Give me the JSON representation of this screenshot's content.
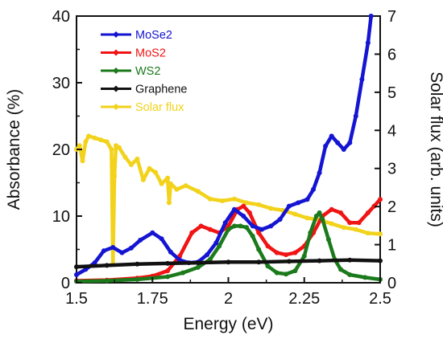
{
  "chart_data": {
    "type": "line",
    "title": "",
    "xlabel": "Energy (eV)",
    "ylabel": "Absorbance (%)",
    "y2label": "Solar flux (arb. units)",
    "xlim": [
      1.5,
      2.5
    ],
    "ylim": [
      0,
      40
    ],
    "y2lim": [
      0,
      7
    ],
    "x_ticks": [
      1.5,
      1.75,
      2,
      2.25,
      2.5
    ],
    "x_tick_labels": [
      "1.5",
      "1.75",
      "2",
      "2.25",
      "2.5"
    ],
    "y_ticks": [
      0,
      10,
      20,
      30,
      40
    ],
    "y_tick_labels": [
      "0",
      "10",
      "20",
      "30",
      "40"
    ],
    "y2_ticks": [
      0,
      1,
      2,
      3,
      4,
      5,
      6,
      7
    ],
    "y2_tick_labels": [
      "0",
      "1",
      "2",
      "3",
      "4",
      "5",
      "6",
      "7"
    ],
    "grid": false,
    "legend_position": "top-left",
    "series": [
      {
        "name": "MoSe2",
        "color": "#1414d2",
        "axis": "left",
        "x": [
          1.5,
          1.53,
          1.56,
          1.59,
          1.62,
          1.65,
          1.68,
          1.71,
          1.75,
          1.78,
          1.81,
          1.84,
          1.87,
          1.9,
          1.93,
          1.96,
          1.99,
          2.02,
          2.05,
          2.08,
          2.11,
          2.14,
          2.17,
          2.2,
          2.23,
          2.26,
          2.28,
          2.3,
          2.32,
          2.34,
          2.36,
          2.38,
          2.4,
          2.42,
          2.44,
          2.46,
          2.47
        ],
        "y": [
          1.2,
          2.0,
          3.0,
          4.8,
          5.3,
          4.5,
          5.2,
          6.4,
          7.5,
          6.6,
          4.6,
          3.4,
          3.0,
          3.1,
          4.2,
          6.0,
          9.0,
          11.0,
          10.0,
          8.5,
          8.0,
          8.5,
          9.5,
          11.5,
          12.0,
          12.5,
          14.0,
          16.5,
          20.5,
          22.0,
          21.0,
          20.0,
          21.0,
          25.0,
          30.5,
          36.0,
          40.0
        ]
      },
      {
        "name": "MoS2",
        "color": "#f01414",
        "axis": "left",
        "x": [
          1.5,
          1.6,
          1.7,
          1.75,
          1.8,
          1.84,
          1.88,
          1.91,
          1.94,
          1.97,
          2.0,
          2.03,
          2.05,
          2.07,
          2.1,
          2.13,
          2.16,
          2.19,
          2.22,
          2.25,
          2.28,
          2.31,
          2.34,
          2.37,
          2.4,
          2.43,
          2.46,
          2.48,
          2.5
        ],
        "y": [
          0.3,
          0.4,
          0.7,
          1.0,
          1.8,
          4.0,
          7.5,
          8.5,
          8.0,
          7.5,
          8.5,
          11.0,
          11.5,
          10.5,
          7.5,
          5.5,
          4.5,
          4.2,
          4.5,
          5.5,
          7.5,
          10.0,
          11.0,
          10.5,
          9.0,
          9.0,
          10.5,
          11.5,
          12.5
        ]
      },
      {
        "name": "WS2",
        "color": "#1b7a1b",
        "axis": "left",
        "x": [
          1.5,
          1.6,
          1.7,
          1.8,
          1.85,
          1.9,
          1.94,
          1.97,
          2.0,
          2.02,
          2.04,
          2.06,
          2.08,
          2.1,
          2.13,
          2.16,
          2.19,
          2.22,
          2.25,
          2.27,
          2.29,
          2.3,
          2.31,
          2.33,
          2.35,
          2.37,
          2.4,
          2.45,
          2.5
        ],
        "y": [
          0.2,
          0.3,
          0.5,
          0.9,
          1.5,
          2.3,
          3.5,
          5.5,
          8.0,
          8.5,
          8.5,
          8.3,
          7.0,
          5.0,
          2.5,
          1.5,
          1.3,
          1.8,
          4.0,
          7.5,
          10.0,
          10.5,
          9.5,
          6.5,
          3.5,
          2.0,
          1.2,
          0.8,
          0.5
        ]
      },
      {
        "name": "Graphene",
        "color": "#111111",
        "axis": "left",
        "x": [
          1.5,
          1.6,
          1.7,
          1.8,
          1.9,
          2.0,
          2.1,
          2.2,
          2.3,
          2.4,
          2.5
        ],
        "y": [
          2.4,
          2.6,
          2.8,
          2.9,
          3.0,
          3.1,
          3.1,
          3.2,
          3.3,
          3.4,
          3.3
        ]
      },
      {
        "name": "Solar flux",
        "color": "#f2d21a",
        "axis": "right",
        "x": [
          1.5,
          1.51,
          1.52,
          1.53,
          1.54,
          1.56,
          1.58,
          1.6,
          1.615,
          1.62,
          1.625,
          1.63,
          1.64,
          1.66,
          1.68,
          1.7,
          1.72,
          1.74,
          1.76,
          1.78,
          1.8,
          1.805,
          1.81,
          1.83,
          1.86,
          1.9,
          1.94,
          1.98,
          2.02,
          2.06,
          2.1,
          2.14,
          2.18,
          2.22,
          2.26,
          2.3,
          2.34,
          2.38,
          2.42,
          2.46,
          2.5
        ],
        "y": [
          3.5,
          3.6,
          3.2,
          3.7,
          3.85,
          3.8,
          3.75,
          3.7,
          3.5,
          0.5,
          2.8,
          3.6,
          3.55,
          3.3,
          3.1,
          3.25,
          2.7,
          3.0,
          2.9,
          2.6,
          2.75,
          2.1,
          2.6,
          2.45,
          2.55,
          2.4,
          2.2,
          2.15,
          2.2,
          2.1,
          2.05,
          1.95,
          1.9,
          1.8,
          1.7,
          1.65,
          1.55,
          1.45,
          1.4,
          1.3,
          1.28
        ]
      }
    ]
  }
}
